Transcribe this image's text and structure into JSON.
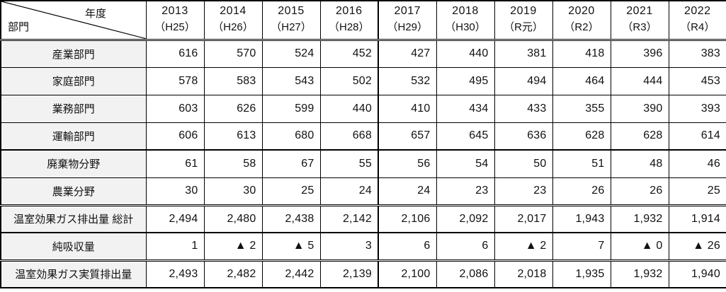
{
  "colors": {
    "row_header_background": "#f2f2f2",
    "border": "#000000",
    "text": "#111111",
    "negative_marker_glyph": "▲"
  },
  "table": {
    "corner": {
      "year_axis_label": "年度",
      "sector_axis_label": "部門"
    },
    "columns": [
      {
        "year": "2013",
        "era": "（H25）"
      },
      {
        "year": "2014",
        "era": "（H26）"
      },
      {
        "year": "2015",
        "era": "（H27）"
      },
      {
        "year": "2016",
        "era": "（H28）"
      },
      {
        "year": "2017",
        "era": "（H29）"
      },
      {
        "year": "2018",
        "era": "（H30）"
      },
      {
        "year": "2019",
        "era": "（R元）"
      },
      {
        "year": "2020",
        "era": "（R2）"
      },
      {
        "year": "2021",
        "era": "（R3）"
      },
      {
        "year": "2022",
        "era": "（R4）"
      }
    ],
    "rows": [
      {
        "label": "産業部門",
        "values": [
          "616",
          "570",
          "524",
          "452",
          "427",
          "440",
          "381",
          "418",
          "396",
          "383"
        ]
      },
      {
        "label": "家庭部門",
        "values": [
          "578",
          "583",
          "543",
          "502",
          "532",
          "495",
          "494",
          "464",
          "444",
          "453"
        ]
      },
      {
        "label": "業務部門",
        "values": [
          "603",
          "626",
          "599",
          "440",
          "410",
          "434",
          "433",
          "355",
          "390",
          "393"
        ]
      },
      {
        "label": "運輸部門",
        "values": [
          "606",
          "613",
          "680",
          "668",
          "657",
          "645",
          "636",
          "628",
          "628",
          "614"
        ]
      },
      {
        "label": "廃棄物分野",
        "values": [
          "61",
          "58",
          "67",
          "55",
          "56",
          "54",
          "50",
          "51",
          "48",
          "46"
        ]
      },
      {
        "label": "農業分野",
        "values": [
          "30",
          "30",
          "25",
          "24",
          "24",
          "23",
          "23",
          "26",
          "26",
          "25"
        ]
      },
      {
        "label": "温室効果ガス排出量 総計",
        "values": [
          "2,494",
          "2,480",
          "2,438",
          "2,142",
          "2,106",
          "2,092",
          "2,017",
          "1,943",
          "1,932",
          "1,914"
        ]
      },
      {
        "label": "純吸収量",
        "values": [
          "1",
          "▲ 2",
          "▲ 5",
          "3",
          "6",
          "6",
          "▲ 2",
          "7",
          "▲ 0",
          "▲ 26"
        ]
      },
      {
        "label": "温室効果ガス実質排出量",
        "values": [
          "2,493",
          "2,482",
          "2,442",
          "2,139",
          "2,100",
          "2,086",
          "2,018",
          "1,935",
          "1,932",
          "1,940"
        ]
      }
    ]
  }
}
